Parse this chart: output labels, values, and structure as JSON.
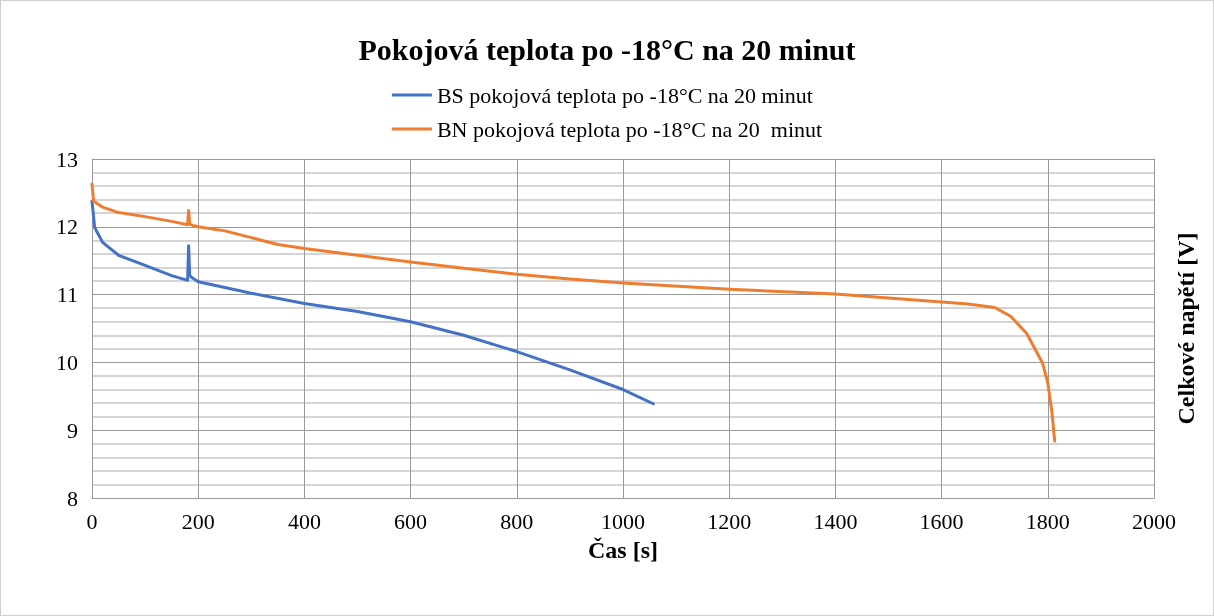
{
  "chart_data": {
    "type": "line",
    "title": "Pokojová teplota po -18°C na 20 minut",
    "xlabel": "Čas [s]",
    "ylabel": "Celkové napětí [V]",
    "xlim": [
      0,
      2000
    ],
    "xticks": [
      0,
      200,
      400,
      600,
      800,
      1000,
      1200,
      1400,
      1600,
      1800,
      2000
    ],
    "ylim": [
      8,
      13
    ],
    "yticks": [
      8,
      9,
      10,
      11,
      12,
      13
    ],
    "grid": true,
    "legend": "top",
    "marker": "none",
    "line_style": "solid",
    "series": [
      {
        "name": "BS pokojová teplota po -18°C na 20 minut",
        "color": "#4472c4",
        "x": [
          0,
          5,
          20,
          50,
          100,
          150,
          180,
          182,
          184,
          190,
          200,
          300,
          400,
          500,
          600,
          700,
          800,
          900,
          1000,
          1057
        ],
        "values": [
          12.38,
          11.99,
          11.77,
          11.58,
          11.43,
          11.28,
          11.21,
          11.72,
          11.28,
          11.24,
          11.19,
          11.02,
          10.87,
          10.75,
          10.6,
          10.4,
          10.16,
          9.89,
          9.6,
          9.39
        ]
      },
      {
        "name": "BN pokojová teplota po -18°C na 20  minut",
        "color": "#ed7d31",
        "x": [
          0,
          3,
          20,
          50,
          100,
          150,
          180,
          182,
          184,
          190,
          200,
          250,
          300,
          350,
          400,
          500,
          600,
          700,
          800,
          900,
          1000,
          1200,
          1400,
          1500,
          1600,
          1650,
          1700,
          1730,
          1760,
          1790,
          1800,
          1808,
          1813
        ],
        "values": [
          12.63,
          12.38,
          12.29,
          12.21,
          12.15,
          12.08,
          12.03,
          12.24,
          12.04,
          12.02,
          12.0,
          11.94,
          11.84,
          11.74,
          11.68,
          11.58,
          11.48,
          11.39,
          11.3,
          11.23,
          11.17,
          11.08,
          11.01,
          10.95,
          10.89,
          10.86,
          10.81,
          10.68,
          10.43,
          9.99,
          9.7,
          9.25,
          8.84
        ]
      }
    ]
  }
}
